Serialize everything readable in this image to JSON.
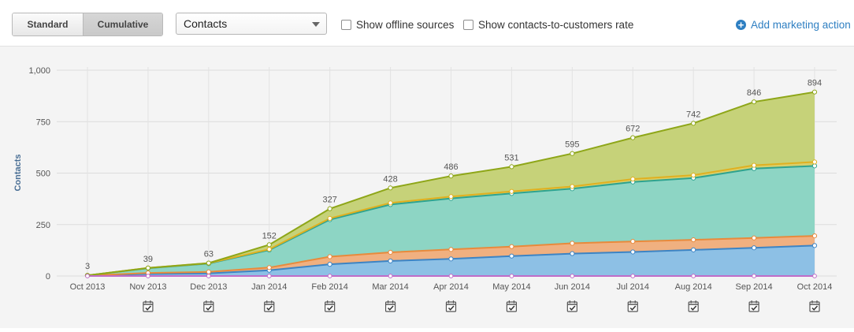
{
  "toolbar": {
    "mode_standard": "Standard",
    "mode_cumulative": "Cumulative",
    "metric_select": "Contacts",
    "offline_label": "Show offline sources",
    "rate_label": "Show contacts-to-customers rate",
    "add_action": "Add marketing action"
  },
  "chart_data": {
    "type": "area",
    "stacked": true,
    "ylabel": "Contacts",
    "ylim": [
      0,
      1000
    ],
    "yticks": [
      "0",
      "250",
      "500",
      "750",
      "1,000"
    ],
    "ytick_values": [
      0,
      250,
      500,
      750,
      1000
    ],
    "grid": true,
    "categories": [
      "Oct 2013",
      "Nov 2013",
      "Dec 2013",
      "Jan 2014",
      "Feb 2014",
      "Mar 2014",
      "Apr 2014",
      "May 2014",
      "Jun 2014",
      "Jul 2014",
      "Aug 2014",
      "Sep 2014",
      "Oct 2014"
    ],
    "total_labels": [
      "3",
      "39",
      "63",
      "152",
      "327",
      "428",
      "486",
      "531",
      "595",
      "672",
      "742",
      "846",
      "894"
    ],
    "totals": [
      3,
      39,
      63,
      152,
      327,
      428,
      486,
      531,
      595,
      672,
      742,
      846,
      894
    ],
    "series": [
      {
        "color": "#8dc0e5",
        "line": "#3d84c4",
        "values": [
          2,
          10,
          13,
          28,
          57,
          73,
          83,
          97,
          109,
          117,
          127,
          137,
          148
        ]
      },
      {
        "color": "#f0b080",
        "line": "#e88a3c",
        "values": [
          0,
          5,
          7,
          13,
          37,
          42,
          46,
          46,
          50,
          51,
          49,
          48,
          47
        ]
      },
      {
        "color": "#8dd5c4",
        "line": "#2fa38f",
        "values": [
          1,
          23,
          40,
          85,
          180,
          232,
          248,
          258,
          265,
          289,
          300,
          337,
          340
        ]
      },
      {
        "color": "#d8cf6b",
        "line": "#e0b020",
        "values": [
          0,
          1,
          2,
          4,
          6,
          8,
          9,
          10,
          11,
          14,
          14,
          16,
          19
        ]
      },
      {
        "color": "#c6d279",
        "line": "#8ea618",
        "values": [
          0,
          0,
          1,
          22,
          47,
          73,
          100,
          120,
          160,
          201,
          252,
          308,
          340
        ]
      }
    ],
    "marker_series": {
      "line": "#c06cc8",
      "values": [
        0,
        0,
        0,
        0,
        0,
        0,
        0,
        0,
        0,
        0,
        0,
        0,
        0
      ]
    },
    "action_icons": [
      "calendar-check-icon"
    ]
  }
}
